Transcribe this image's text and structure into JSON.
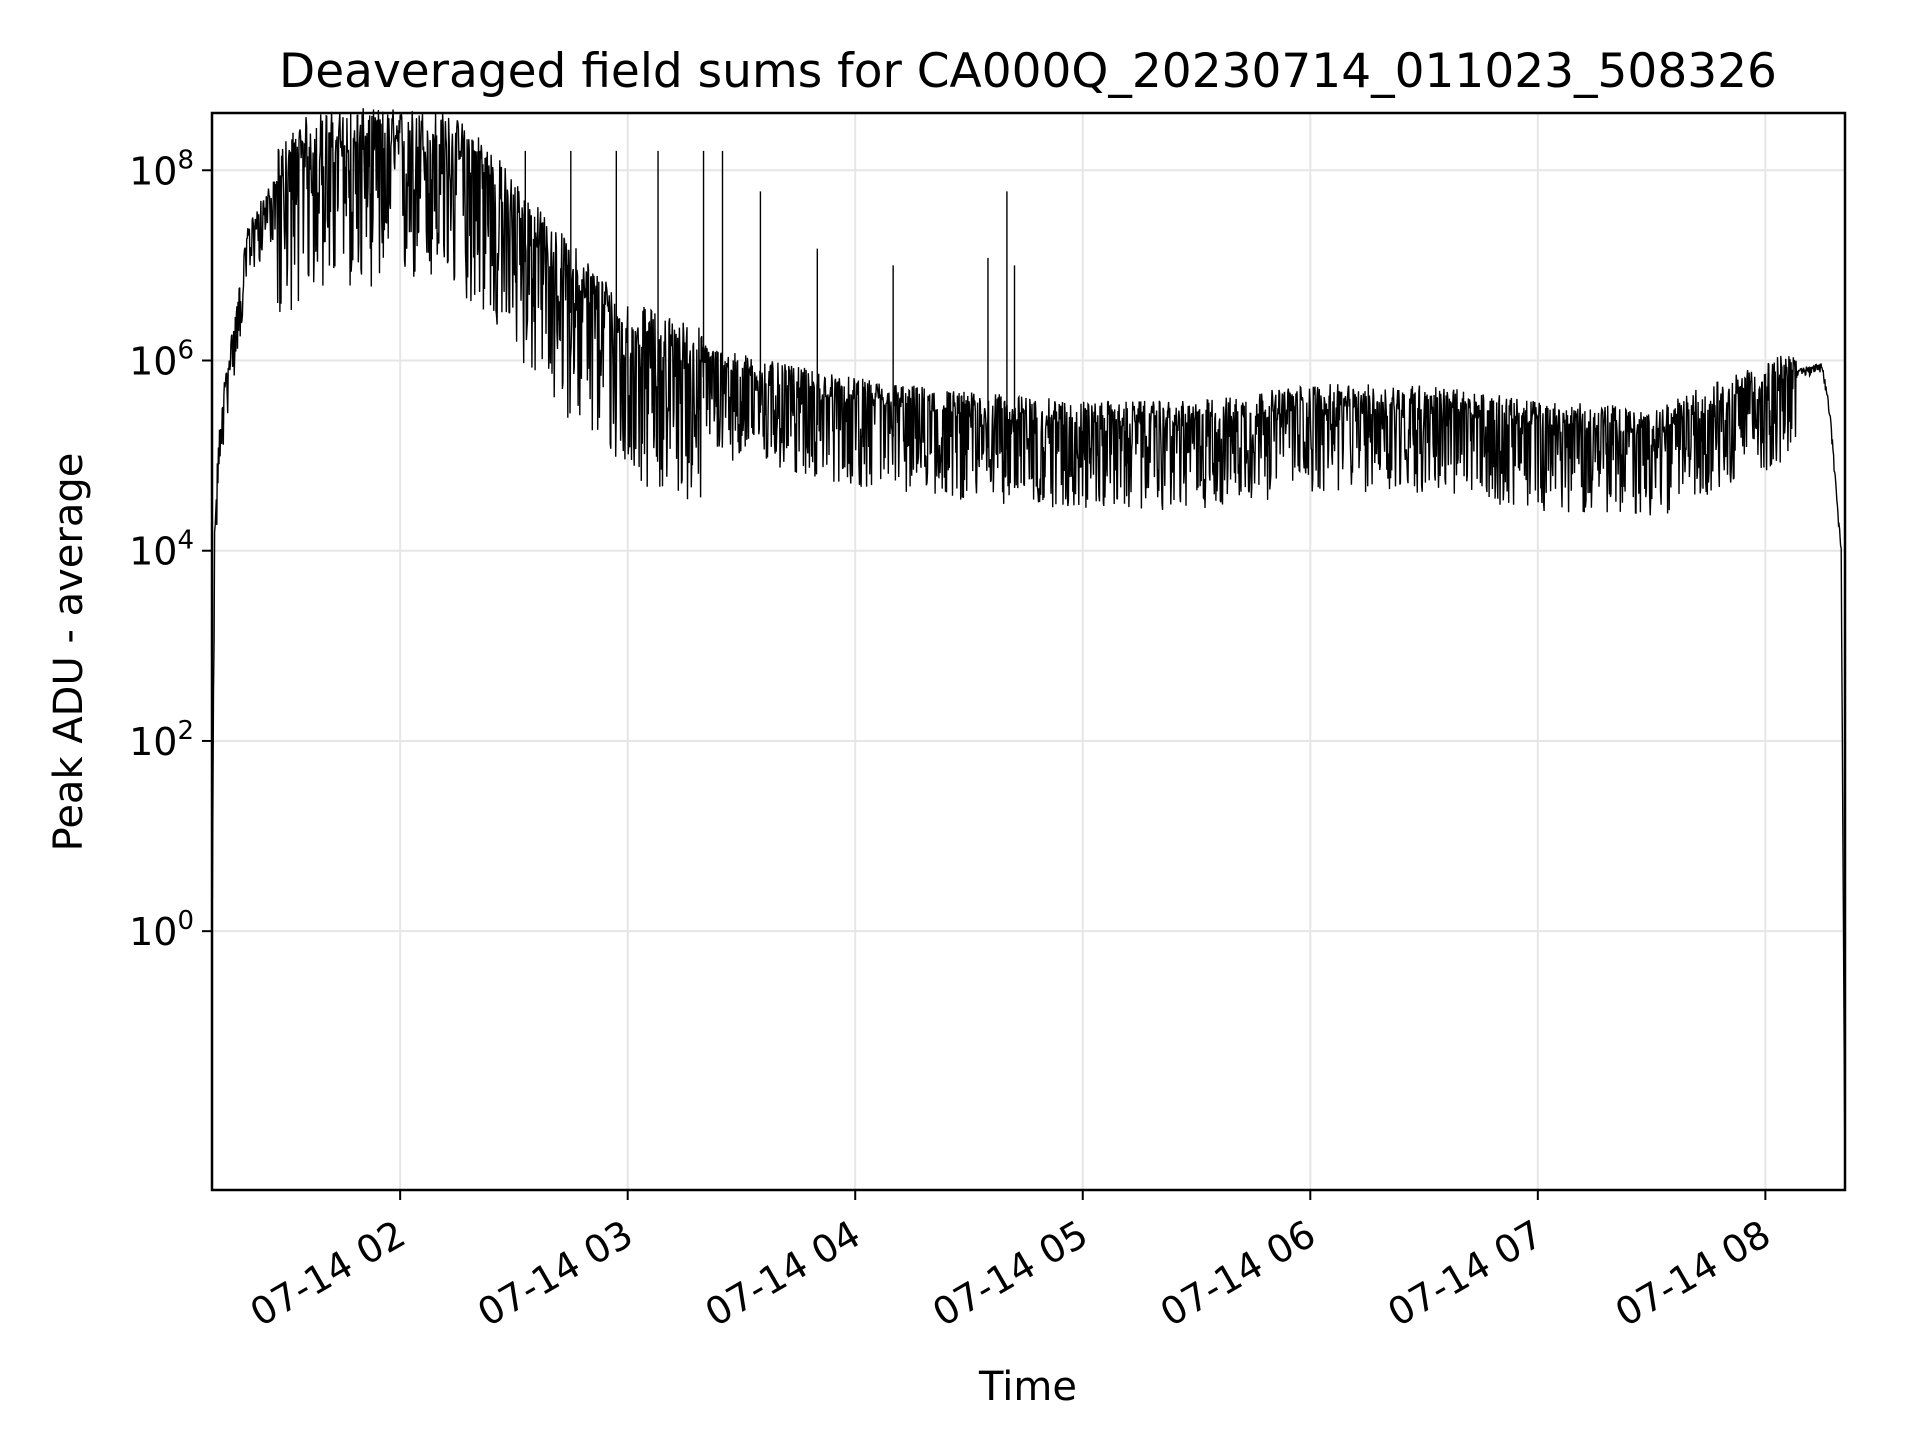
{
  "chart_data": {
    "type": "line",
    "title": "Deaveraged field sums for CA000Q_20230714_011023_508326",
    "xlabel": "Time",
    "ylabel": "Peak ADU - average",
    "yscale": "log",
    "grid": true,
    "line_color": "#000000",
    "grid_color": "#e6e6e6",
    "xlim": [
      "2023-07-14 01:10:23",
      "2023-07-14 08:21:00"
    ],
    "ylim": [
      0.0019,
      400000000
    ],
    "x_ticks": [
      {
        "value": "2023-07-14 02:00",
        "label": "07-14 02"
      },
      {
        "value": "2023-07-14 03:00",
        "label": "07-14 03"
      },
      {
        "value": "2023-07-14 04:00",
        "label": "07-14 04"
      },
      {
        "value": "2023-07-14 05:00",
        "label": "07-14 05"
      },
      {
        "value": "2023-07-14 06:00",
        "label": "07-14 06"
      },
      {
        "value": "2023-07-14 07:00",
        "label": "07-14 07"
      },
      {
        "value": "2023-07-14 08:00",
        "label": "07-14 08"
      }
    ],
    "y_ticks": [
      {
        "value": 1,
        "base": "10",
        "exp": "0"
      },
      {
        "value": 100,
        "base": "10",
        "exp": "2"
      },
      {
        "value": 10000,
        "base": "10",
        "exp": "4"
      },
      {
        "value": 1000000,
        "base": "10",
        "exp": "6"
      },
      {
        "value": 100000000,
        "base": "10",
        "exp": "8"
      }
    ],
    "series": [
      {
        "points": [
          [
            "2023-07-14 01:10:30",
            2
          ],
          [
            "2023-07-14 01:11:00",
            10000
          ],
          [
            "2023-07-14 01:12:00",
            100000
          ],
          [
            "2023-07-14 01:14:00",
            600000
          ],
          [
            "2023-07-14 01:17:00",
            3000000
          ],
          [
            "2023-07-14 01:20:00",
            20000000
          ],
          [
            "2023-07-14 01:25:00",
            45000000
          ],
          [
            "2023-07-14 01:30:00",
            80000000
          ],
          [
            "2023-07-14 01:35:00",
            130000000
          ],
          [
            "2023-07-14 01:40:00",
            150000000
          ],
          [
            "2023-07-14 01:50:00",
            160000000
          ],
          [
            "2023-07-14 02:00:00",
            160000000
          ],
          [
            "2023-07-14 02:10:00",
            155000000
          ],
          [
            "2023-07-14 02:20:00",
            100000000
          ],
          [
            "2023-07-14 02:30:00",
            30000000
          ],
          [
            "2023-07-14 02:40:00",
            10000000
          ],
          [
            "2023-07-14 02:50:00",
            4000000
          ],
          [
            "2023-07-14 03:00:00",
            1500000
          ],
          [
            "2023-07-14 03:20:00",
            800000
          ],
          [
            "2023-07-14 03:40:00",
            500000
          ],
          [
            "2023-07-14 04:00:00",
            350000
          ],
          [
            "2023-07-14 04:30:00",
            250000
          ],
          [
            "2023-07-14 05:00:00",
            200000
          ],
          [
            "2023-07-14 05:30:00",
            200000
          ],
          [
            "2023-07-14 06:00:00",
            300000
          ],
          [
            "2023-07-14 06:30:00",
            300000
          ],
          [
            "2023-07-14 07:00:00",
            200000
          ],
          [
            "2023-07-14 07:20:00",
            180000
          ],
          [
            "2023-07-14 07:30:00",
            150000
          ],
          [
            "2023-07-14 07:40:00",
            250000
          ],
          [
            "2023-07-14 07:50:00",
            350000
          ],
          [
            "2023-07-14 08:00:00",
            500000
          ],
          [
            "2023-07-14 08:10:00",
            800000
          ],
          [
            "2023-07-14 08:15:00",
            900000
          ],
          [
            "2023-07-14 08:17:00",
            300000
          ],
          [
            "2023-07-14 08:19:00",
            30000
          ],
          [
            "2023-07-14 08:20:00",
            10000
          ],
          [
            "2023-07-14 08:21:00",
            0.002
          ]
        ],
        "spikes": [
          [
            "2023-07-14 02:21:00",
            160000000
          ],
          [
            "2023-07-14 02:33:00",
            160000000
          ],
          [
            "2023-07-14 02:45:00",
            160000000
          ],
          [
            "2023-07-14 02:57:00",
            160000000
          ],
          [
            "2023-07-14 03:08:00",
            160000000
          ],
          [
            "2023-07-14 03:20:00",
            160000000
          ],
          [
            "2023-07-14 03:25:00",
            160000000
          ],
          [
            "2023-07-14 03:35:00",
            60000000
          ],
          [
            "2023-07-14 03:50:00",
            15000000
          ],
          [
            "2023-07-14 04:10:00",
            10000000
          ],
          [
            "2023-07-14 04:35:00",
            12000000
          ],
          [
            "2023-07-14 04:40:00",
            60000000
          ],
          [
            "2023-07-14 04:42:00",
            10000000
          ]
        ]
      }
    ]
  }
}
